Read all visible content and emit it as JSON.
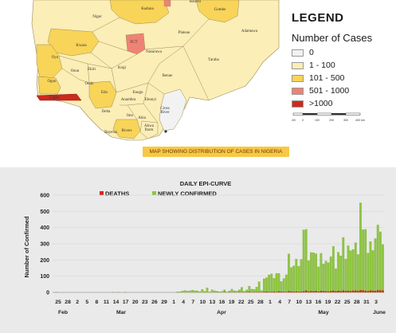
{
  "map": {
    "legend_title": "LEGEND",
    "legend_subtitle": "Number of Cases",
    "legend_items": [
      {
        "label": "0",
        "color": "#f2f2f2"
      },
      {
        "label": "1 - 100",
        "color": "#fbeeb6"
      },
      {
        "label": "101 - 500",
        "color": "#f8d458"
      },
      {
        "label": "501 - 1000",
        "color": "#ee8374"
      },
      {
        "label": ">1000",
        "color": "#cc2a1d"
      }
    ],
    "scale_labels": [
      "100",
      "0",
      "100",
      "200",
      "300",
      "400 km"
    ],
    "caption": "MAP SHOWING DISTRIBUTION OF CASES IN NIGERIA",
    "state_labels": [
      "Kaduna",
      "Bauchi",
      "Gombe",
      "Niger",
      "FCT",
      "Plateau",
      "Adamawa",
      "Kwara",
      "Nasarawa",
      "Oyo",
      "Taraba",
      "Kogi",
      "Osun",
      "Ekiti",
      "Benue",
      "Ogun",
      "Ondo",
      "Lagos",
      "Edo",
      "Enugu",
      "Anambra",
      "Ebonyi",
      "Cross River",
      "Delta",
      "Imo",
      "Abia",
      "Akwa Ibom",
      "Rivers",
      "Bayelsa"
    ]
  },
  "chart_data": {
    "type": "bar",
    "title": "DAILY EPI-CURVE",
    "ylabel": "Number of Confirmed",
    "ylim": [
      0,
      600
    ],
    "yticks": [
      0,
      100,
      200,
      300,
      400,
      500,
      600
    ],
    "x_tick_labels": [
      "25",
      "28",
      "2",
      "5",
      "8",
      "11",
      "14",
      "17",
      "20",
      "23",
      "26",
      "29",
      "1",
      "4",
      "7",
      "10",
      "13",
      "16",
      "19",
      "22",
      "25",
      "28",
      "1",
      "4",
      "7",
      "10",
      "13",
      "16",
      "19",
      "22",
      "25",
      "28",
      "31",
      "3"
    ],
    "month_labels": [
      "Feb",
      "Mar",
      "Apr",
      "May",
      "June"
    ],
    "series": [
      {
        "name": "NEWLY CONFIRMED",
        "color": "#8dc63f",
        "values": [
          0,
          1,
          0,
          0,
          0,
          0,
          0,
          0,
          0,
          0,
          0,
          0,
          0,
          0,
          0,
          0,
          0,
          0,
          0,
          0,
          0,
          0,
          0,
          0,
          1,
          0,
          1,
          0,
          0,
          1,
          0,
          0,
          0,
          0,
          0,
          0,
          0,
          0,
          0,
          0,
          0,
          0,
          0,
          0,
          0,
          0,
          0,
          0,
          0,
          0,
          4,
          4,
          8,
          12,
          8,
          10,
          14,
          10,
          10,
          5,
          18,
          6,
          28,
          3,
          16,
          10,
          7,
          4,
          7,
          16,
          3,
          9,
          20,
          10,
          8,
          16,
          31,
          7,
          16,
          38,
          20,
          18,
          33,
          66,
          12,
          84,
          91,
          108,
          114,
          87,
          117,
          117,
          67,
          86,
          109,
          238,
          153,
          164,
          206,
          161,
          204,
          386,
          389,
          196,
          246,
          245,
          239,
          158,
          241,
          176,
          193,
          184,
          220,
          284,
          146,
          248,
          226,
          339,
          205,
          288,
          257,
          265,
          307,
          234,
          553,
          387,
          389,
          243,
          314,
          259,
          332,
          416,
          374,
          295
        ]
      },
      {
        "name": "DEATHS",
        "color": "#d9261c",
        "values": [
          0,
          0,
          0,
          0,
          0,
          0,
          0,
          0,
          0,
          0,
          0,
          0,
          0,
          0,
          0,
          0,
          0,
          0,
          0,
          0,
          0,
          0,
          0,
          0,
          0,
          0,
          0,
          0,
          0,
          0,
          0,
          0,
          0,
          0,
          0,
          0,
          0,
          0,
          0,
          0,
          0,
          0,
          0,
          0,
          0,
          0,
          0,
          0,
          0,
          0,
          0,
          0,
          0,
          0,
          0,
          0,
          0,
          0,
          0,
          0,
          0,
          1,
          0,
          0,
          0,
          0,
          1,
          0,
          0,
          2,
          0,
          1,
          0,
          1,
          0,
          2,
          1,
          1,
          2,
          4,
          1,
          2,
          2,
          3,
          1,
          4,
          5,
          3,
          4,
          5,
          3,
          7,
          5,
          4,
          3,
          8,
          6,
          5,
          6,
          4,
          5,
          7,
          12,
          6,
          8,
          7,
          9,
          5,
          10,
          8,
          7,
          6,
          9,
          11,
          7,
          10,
          8,
          12,
          9,
          10,
          8,
          11,
          12,
          9,
          14,
          13,
          10,
          9,
          12,
          11,
          10,
          14,
          13,
          12
        ]
      }
    ],
    "legend_placement": "top"
  }
}
